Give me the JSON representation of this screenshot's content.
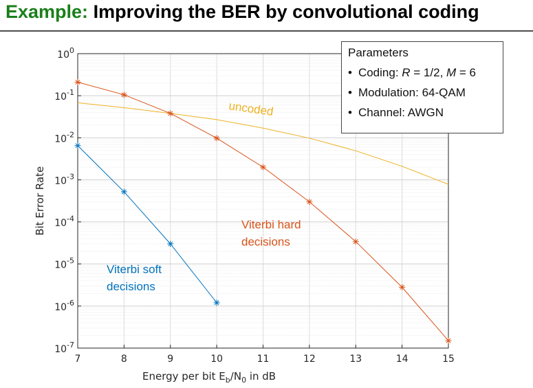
{
  "slide": {
    "title_prefix": "Example:",
    "title_rest": " Improving the BER by convolutional coding"
  },
  "parameters": {
    "title": "Parameters",
    "items": [
      {
        "label": "Coding: ",
        "math1": "R",
        "mid": " = 1/2, ",
        "math2": "M",
        "end": " = 6"
      },
      {
        "label": "Modulation: 64-QAM"
      },
      {
        "label": "Channel: AWGN"
      }
    ]
  },
  "chart_data": {
    "type": "line",
    "xlabel": "Energy per bit E_b/N_0 in dB",
    "xlabel_parts": {
      "main": "Energy per bit E",
      "sub1": "b",
      "mid": "/N",
      "sub2": "0",
      "end": " in dB"
    },
    "ylabel": "Bit Error Rate",
    "xlim": [
      7,
      15
    ],
    "ylim": [
      1e-07,
      1
    ],
    "yscale": "log",
    "grid": true,
    "x_ticks": [
      7,
      8,
      9,
      10,
      11,
      12,
      13,
      14,
      15
    ],
    "y_ticks": [
      {
        "base": "10",
        "exp": "0",
        "value": 1
      },
      {
        "base": "10",
        "exp": "-1",
        "value": 0.1
      },
      {
        "base": "10",
        "exp": "-2",
        "value": 0.01
      },
      {
        "base": "10",
        "exp": "-3",
        "value": 0.001
      },
      {
        "base": "10",
        "exp": "-4",
        "value": 0.0001
      },
      {
        "base": "10",
        "exp": "-5",
        "value": 1e-05
      },
      {
        "base": "10",
        "exp": "-6",
        "value": 1e-06
      },
      {
        "base": "10",
        "exp": "-7",
        "value": 1e-07
      }
    ],
    "series": [
      {
        "name": "uncoded",
        "color": "#edb120",
        "marker": false,
        "x": [
          7,
          8,
          9,
          10,
          11,
          12,
          13,
          14,
          15
        ],
        "y": [
          0.068,
          0.052,
          0.038,
          0.027,
          0.017,
          0.0098,
          0.0049,
          0.0021,
          0.00078
        ]
      },
      {
        "name": "Viterbi hard decisions",
        "color": "#d95319",
        "marker": true,
        "x": [
          7,
          8,
          9,
          10,
          11,
          12,
          13,
          14,
          15
        ],
        "y": [
          0.21,
          0.105,
          0.038,
          0.0098,
          0.002,
          0.0003,
          3.4e-05,
          2.8e-06,
          1.5e-07
        ]
      },
      {
        "name": "Viterbi soft decisions",
        "color": "#0072bd",
        "marker": true,
        "x": [
          7,
          8,
          9,
          10
        ],
        "y": [
          0.0065,
          0.00052,
          3e-05,
          1.2e-06
        ]
      }
    ],
    "annotations": [
      {
        "lines": [
          "uncoded"
        ],
        "color": "#edb120"
      },
      {
        "lines": [
          "Viterbi hard",
          "decisions"
        ],
        "color": "#d95319"
      },
      {
        "lines": [
          "Viterbi soft",
          "decisions"
        ],
        "color": "#0072bd"
      }
    ]
  }
}
